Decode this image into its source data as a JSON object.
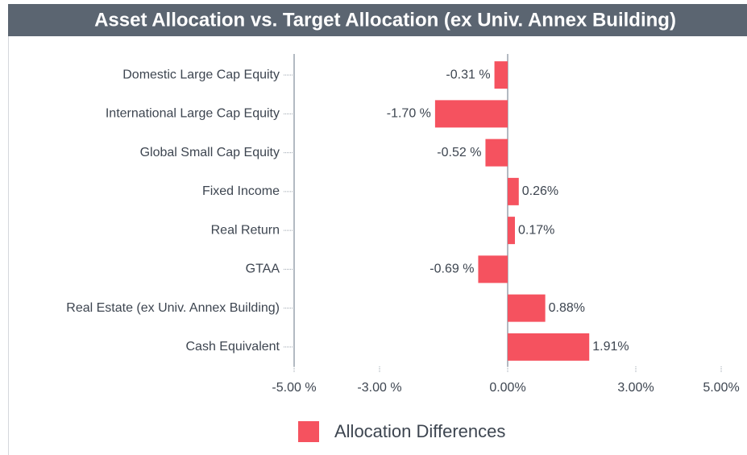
{
  "chart_data": {
    "type": "bar",
    "orientation": "horizontal",
    "title": "Asset Allocation vs. Target Allocation (ex Univ. Annex Building)",
    "categories": [
      "Domestic Large Cap Equity",
      "International Large Cap Equity",
      "Global Small Cap Equity",
      "Fixed Income",
      "Real Return",
      "GTAA",
      "Real Estate (ex Univ. Annex Building)",
      "Cash Equivalent"
    ],
    "series": [
      {
        "name": "Allocation Differences",
        "color": "#f5525f",
        "values": [
          -0.31,
          -1.7,
          -0.52,
          0.26,
          0.17,
          -0.69,
          0.88,
          1.91
        ],
        "value_labels": [
          "-0.31 %",
          "-1.70 %",
          "-0.52 %",
          "0.26%",
          "0.17%",
          "-0.69 %",
          "0.88%",
          "1.91%"
        ]
      }
    ],
    "xlim": [
      -5,
      5
    ],
    "xticks": [
      {
        "value": -5,
        "label": "-5.00 %"
      },
      {
        "value": -3,
        "label": "-3.00 %"
      },
      {
        "value": 0,
        "label": "0.00%"
      },
      {
        "value": 3,
        "label": "3.00%"
      },
      {
        "value": 5,
        "label": "5.00%"
      }
    ],
    "legend": "bottom"
  }
}
